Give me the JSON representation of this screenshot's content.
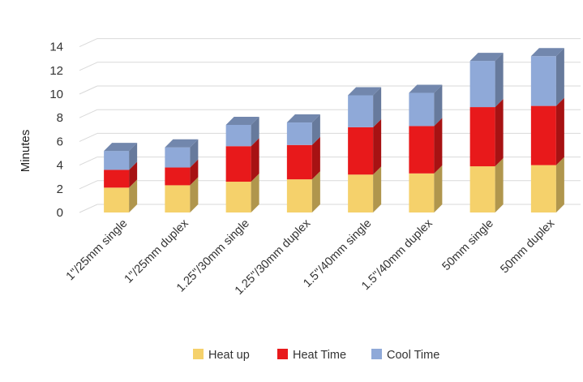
{
  "chart_data": {
    "type": "bar",
    "stacked": true,
    "style": "3d-column",
    "ylabel": "Minutes",
    "ylim": [
      0,
      14
    ],
    "yticks": [
      "0",
      "2",
      "4",
      "6",
      "8",
      "10",
      "12",
      "14"
    ],
    "grid": true,
    "legend_position": "bottom",
    "categories": [
      "1\"/25mm single",
      "1\"/25mm duplex",
      "1.25\"/30mm single",
      "1.25\"/30mm duplex",
      "1.5\"/40mm single",
      "1.5\"/40mm duplex",
      "50mm single",
      "50mm duplex"
    ],
    "series": [
      {
        "name": "Heat up",
        "color": "#f5d16b",
        "values": [
          2.1,
          2.3,
          2.6,
          2.8,
          3.2,
          3.3,
          3.9,
          4.0
        ]
      },
      {
        "name": "Heat Time",
        "color": "#e8191b",
        "values": [
          1.5,
          1.5,
          3.0,
          2.9,
          4.0,
          4.0,
          5.0,
          5.0
        ]
      },
      {
        "name": "Cool Time",
        "color": "#8fa9d8",
        "values": [
          1.6,
          1.7,
          1.8,
          1.9,
          2.7,
          2.8,
          3.9,
          4.2
        ]
      }
    ]
  }
}
